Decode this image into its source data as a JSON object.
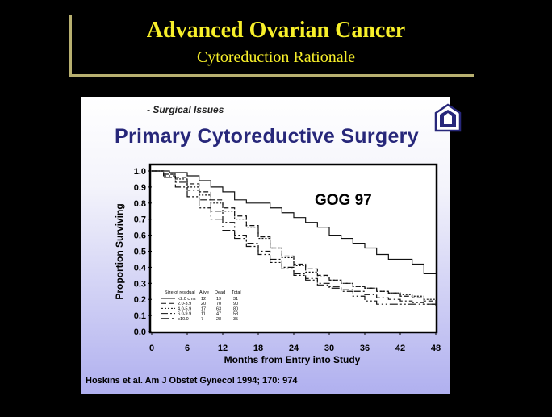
{
  "slide": {
    "title": "Advanced Ovarian Cancer",
    "subtitle": "Cytoreduction Rationale"
  },
  "panel": {
    "section_label": "- Surgical Issues",
    "heading": "Primary Cytoreductive Surgery",
    "citation": "Hoskins et al. Am J Obstet Gynecol 1994; 170: 974"
  },
  "colors": {
    "title_text": "#f7ef2a",
    "heading_text": "#27277a",
    "background": "#000000"
  },
  "chart_data": {
    "type": "line",
    "annotation": "GOG 97",
    "xlabel": "Months from Entry into Study",
    "ylabel": "Proportion Surviving",
    "xlim": [
      0,
      48
    ],
    "ylim": [
      0,
      1
    ],
    "xticks": [
      0,
      6,
      12,
      18,
      24,
      30,
      36,
      42,
      48
    ],
    "yticks": [
      "0.0",
      "0.1",
      "0.2",
      "0.3",
      "0.4",
      "0.5",
      "0.6",
      "0.7",
      "0.8",
      "0.9",
      "1.0"
    ],
    "legend_headers": [
      "Size of residual",
      "Alive",
      "Dead",
      "Total"
    ],
    "series": [
      {
        "name": "<2.0 cms",
        "alive": "12",
        "dead": "19",
        "total": "31",
        "dash": "",
        "points": [
          [
            0,
            1.0
          ],
          [
            3,
            0.99
          ],
          [
            6,
            0.97
          ],
          [
            8,
            0.94
          ],
          [
            10,
            0.9
          ],
          [
            12,
            0.87
          ],
          [
            14,
            0.82
          ],
          [
            16,
            0.8
          ],
          [
            18,
            0.8
          ],
          [
            20,
            0.77
          ],
          [
            22,
            0.74
          ],
          [
            24,
            0.71
          ],
          [
            26,
            0.68
          ],
          [
            28,
            0.65
          ],
          [
            30,
            0.6
          ],
          [
            32,
            0.58
          ],
          [
            34,
            0.55
          ],
          [
            36,
            0.52
          ],
          [
            38,
            0.48
          ],
          [
            40,
            0.45
          ],
          [
            42,
            0.45
          ],
          [
            44,
            0.42
          ],
          [
            46,
            0.36
          ],
          [
            48,
            0.36
          ]
        ]
      },
      {
        "name": "2.0-3.9",
        "alive": "20",
        "dead": "70",
        "total": "90",
        "dash": "6 3",
        "points": [
          [
            0,
            1.0
          ],
          [
            2,
            0.98
          ],
          [
            4,
            0.96
          ],
          [
            6,
            0.92
          ],
          [
            8,
            0.87
          ],
          [
            10,
            0.82
          ],
          [
            12,
            0.77
          ],
          [
            14,
            0.72
          ],
          [
            16,
            0.66
          ],
          [
            18,
            0.59
          ],
          [
            20,
            0.52
          ],
          [
            22,
            0.47
          ],
          [
            24,
            0.42
          ],
          [
            26,
            0.39
          ],
          [
            28,
            0.35
          ],
          [
            30,
            0.32
          ],
          [
            32,
            0.3
          ],
          [
            34,
            0.28
          ],
          [
            36,
            0.27
          ],
          [
            38,
            0.25
          ],
          [
            40,
            0.24
          ],
          [
            42,
            0.22
          ],
          [
            44,
            0.21
          ],
          [
            46,
            0.19
          ],
          [
            48,
            0.17
          ]
        ]
      },
      {
        "name": "4.0-5.9",
        "alive": "17",
        "dead": "63",
        "total": "80",
        "dash": "2 2",
        "points": [
          [
            0,
            1.0
          ],
          [
            2,
            0.98
          ],
          [
            4,
            0.95
          ],
          [
            6,
            0.9
          ],
          [
            8,
            0.85
          ],
          [
            10,
            0.8
          ],
          [
            12,
            0.75
          ],
          [
            14,
            0.7
          ],
          [
            16,
            0.65
          ],
          [
            18,
            0.58
          ],
          [
            20,
            0.52
          ],
          [
            22,
            0.46
          ],
          [
            24,
            0.41
          ],
          [
            26,
            0.37
          ],
          [
            28,
            0.34
          ],
          [
            30,
            0.32
          ],
          [
            32,
            0.3
          ],
          [
            34,
            0.28
          ],
          [
            36,
            0.27
          ],
          [
            38,
            0.25
          ],
          [
            40,
            0.24
          ],
          [
            42,
            0.23
          ],
          [
            44,
            0.22
          ],
          [
            46,
            0.2
          ],
          [
            48,
            0.19
          ]
        ]
      },
      {
        "name": "6.0-9.9",
        "alive": "11",
        "dead": "47",
        "total": "58",
        "dash": "8 3 2 3",
        "points": [
          [
            0,
            1.0
          ],
          [
            2,
            0.97
          ],
          [
            4,
            0.93
          ],
          [
            6,
            0.88
          ],
          [
            8,
            0.82
          ],
          [
            10,
            0.75
          ],
          [
            12,
            0.68
          ],
          [
            14,
            0.6
          ],
          [
            16,
            0.55
          ],
          [
            18,
            0.5
          ],
          [
            20,
            0.45
          ],
          [
            22,
            0.4
          ],
          [
            24,
            0.36
          ],
          [
            26,
            0.33
          ],
          [
            28,
            0.3
          ],
          [
            30,
            0.28
          ],
          [
            32,
            0.26
          ],
          [
            34,
            0.25
          ],
          [
            36,
            0.23
          ],
          [
            38,
            0.21
          ],
          [
            40,
            0.2
          ],
          [
            42,
            0.19
          ],
          [
            44,
            0.18
          ],
          [
            46,
            0.17
          ],
          [
            48,
            0.16
          ]
        ]
      },
      {
        "name": "≥10.0",
        "alive": "7",
        "dead": "28",
        "total": "35",
        "dash": "10 3 2 3 2 3",
        "points": [
          [
            0,
            1.0
          ],
          [
            2,
            0.96
          ],
          [
            4,
            0.9
          ],
          [
            6,
            0.84
          ],
          [
            8,
            0.77
          ],
          [
            10,
            0.7
          ],
          [
            12,
            0.63
          ],
          [
            14,
            0.58
          ],
          [
            16,
            0.53
          ],
          [
            18,
            0.48
          ],
          [
            20,
            0.43
          ],
          [
            22,
            0.39
          ],
          [
            24,
            0.35
          ],
          [
            26,
            0.32
          ],
          [
            28,
            0.29
          ],
          [
            30,
            0.27
          ],
          [
            32,
            0.25
          ],
          [
            34,
            0.22
          ],
          [
            36,
            0.19
          ],
          [
            38,
            0.17
          ],
          [
            40,
            0.17
          ],
          [
            42,
            0.17
          ],
          [
            44,
            0.17
          ],
          [
            46,
            0.17
          ],
          [
            48,
            0.16
          ]
        ]
      }
    ]
  }
}
